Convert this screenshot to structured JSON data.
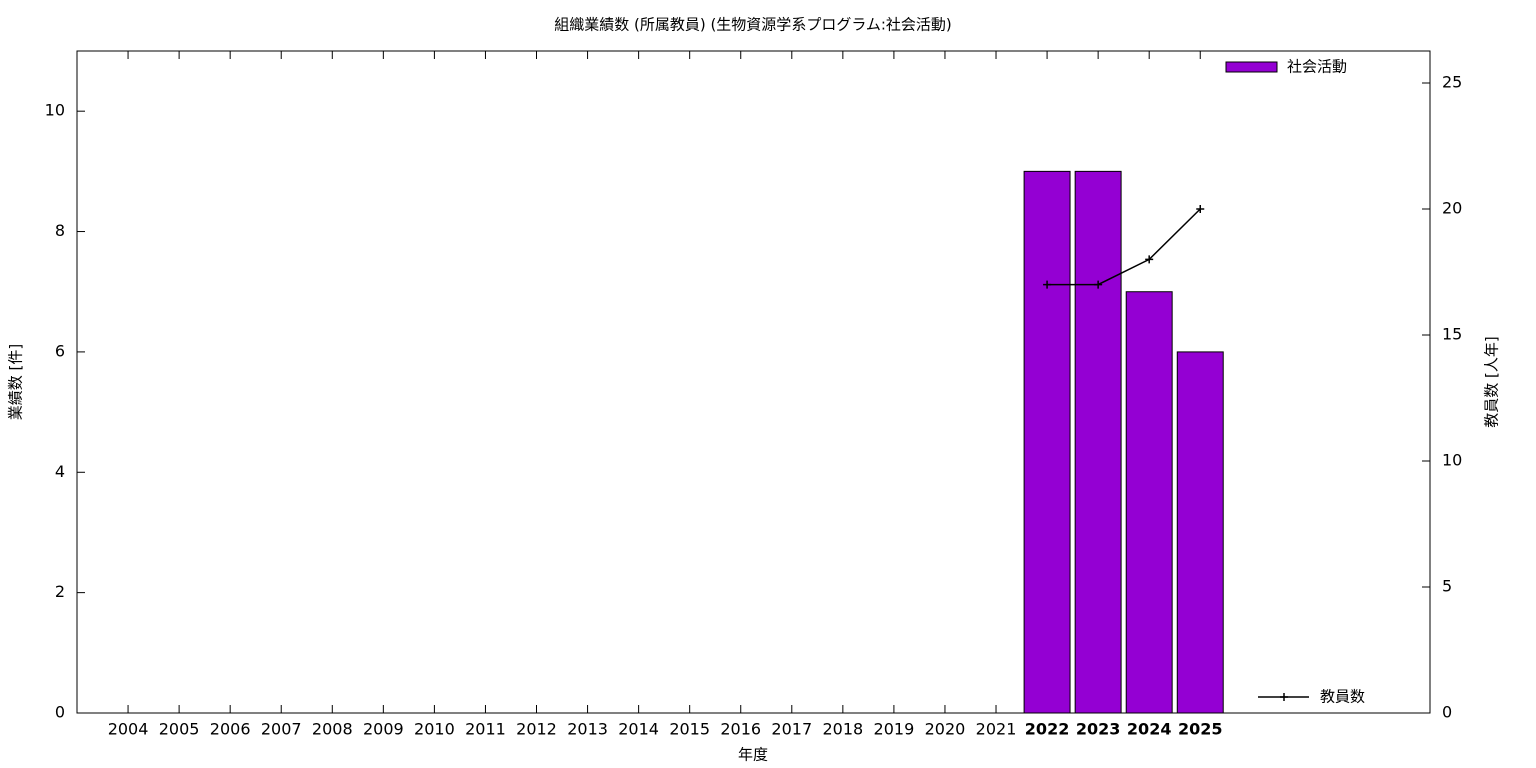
{
  "chart_data": {
    "type": "bar",
    "title": "組織業績数 (所属教員) (生物資源学系プログラム:社会活動)",
    "xlabel": "年度",
    "ylabel": "業績数 [件]",
    "y2label": "教員数 [人年]",
    "x": [
      2004,
      2005,
      2006,
      2007,
      2008,
      2009,
      2010,
      2011,
      2012,
      2013,
      2014,
      2015,
      2016,
      2017,
      2018,
      2019,
      2020,
      2021,
      2022,
      2023,
      2024,
      2025
    ],
    "xlim": [
      2003,
      2029.5
    ],
    "ylim": [
      0,
      11
    ],
    "yticks": [
      0,
      2,
      4,
      6,
      8,
      10
    ],
    "y2lim": [
      0,
      26.27
    ],
    "y2ticks": [
      0,
      5,
      10,
      15,
      20,
      25
    ],
    "series": [
      {
        "name": "社会活動",
        "type": "bar",
        "color": "#9400d3",
        "legend": "top right",
        "values": [
          null,
          null,
          null,
          null,
          null,
          null,
          null,
          null,
          null,
          null,
          null,
          null,
          null,
          null,
          null,
          null,
          null,
          null,
          9,
          9,
          7,
          6
        ]
      },
      {
        "name": "教員数",
        "type": "line",
        "axis": "y2",
        "color": "#000000",
        "legend": "bottom right",
        "values": [
          null,
          null,
          null,
          null,
          null,
          null,
          null,
          null,
          null,
          null,
          null,
          null,
          null,
          null,
          null,
          null,
          null,
          null,
          17,
          17,
          18,
          20
        ]
      }
    ]
  }
}
